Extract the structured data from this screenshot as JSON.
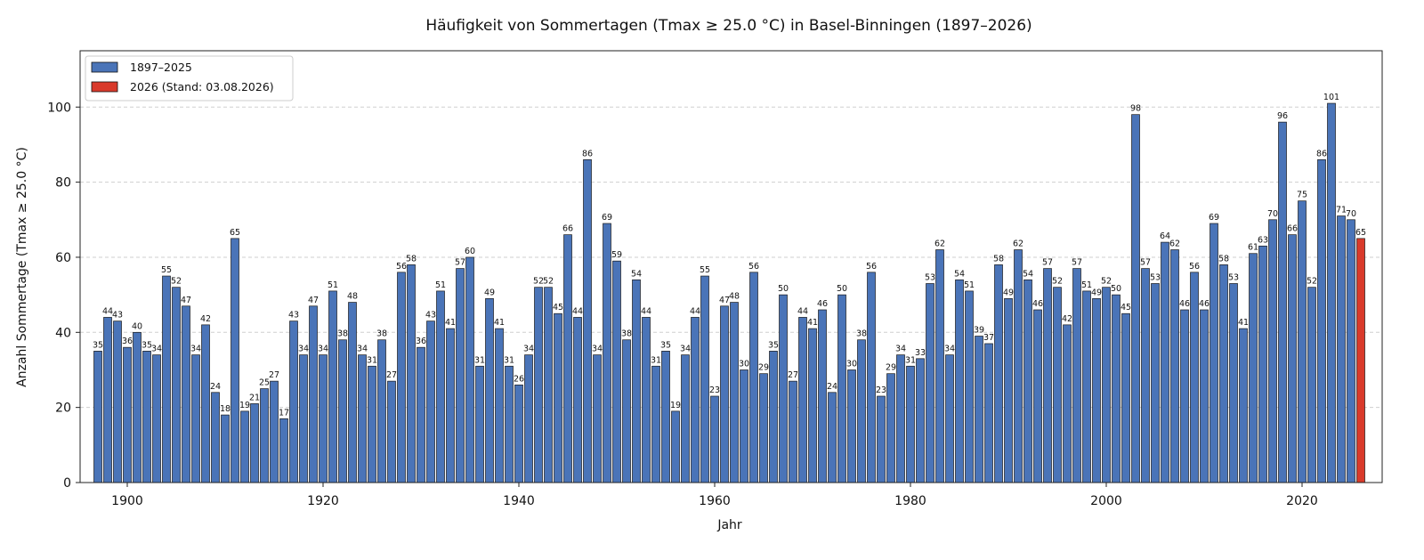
{
  "chart_data": {
    "type": "bar",
    "title": "Häufigkeit von Sommertagen (Tmax ≥ 25.0 °C) in Basel-Binningen (1897–2026)",
    "xlabel": "Jahr",
    "ylabel": "Anzahl Sommertage (Tmax ≥ 25.0 °C)",
    "xlim": [
      1895.5,
      1927.5
    ],
    "ylim": [
      0,
      115
    ],
    "x_ticks": [
      1900,
      1920,
      1940,
      1960,
      1980,
      2000,
      2020
    ],
    "y_ticks": [
      0,
      20,
      40,
      60,
      80,
      100
    ],
    "grid": "horizontal, dashed",
    "legend_position": "top-left",
    "series": [
      {
        "name": "1897–2025",
        "color": "#4a74b8",
        "start_year": 1897,
        "values": [
          35,
          44,
          43,
          36,
          40,
          35,
          34,
          55,
          52,
          47,
          34,
          42,
          24,
          18,
          65,
          19,
          21,
          25,
          27,
          17,
          43,
          34,
          47,
          34,
          51,
          38,
          48,
          34,
          31,
          38,
          27,
          56,
          58,
          36,
          43,
          51,
          41,
          57,
          60,
          31,
          49,
          41,
          31,
          26,
          34,
          52,
          52,
          45,
          66,
          44,
          86,
          34,
          69,
          59,
          38,
          54,
          44,
          31,
          35,
          19,
          34,
          44,
          55,
          23,
          47,
          48,
          30,
          56,
          29,
          35,
          50,
          27,
          44,
          41,
          46,
          24,
          50,
          30,
          38,
          56,
          23,
          29,
          34,
          31,
          33,
          53,
          62,
          34,
          54,
          51,
          39,
          37,
          58,
          49,
          62,
          54,
          46,
          57,
          52,
          42,
          57,
          51,
          49,
          52,
          50,
          45,
          98,
          57,
          53,
          64,
          62,
          46,
          56,
          46,
          69,
          58,
          53,
          41,
          61,
          63,
          70,
          96,
          66,
          75,
          52,
          86,
          101,
          71,
          70
        ]
      },
      {
        "name": "2026 (Stand: 03.08.2026)",
        "color": "#d93a2b",
        "start_year": 2026,
        "values": [
          65
        ]
      }
    ]
  }
}
